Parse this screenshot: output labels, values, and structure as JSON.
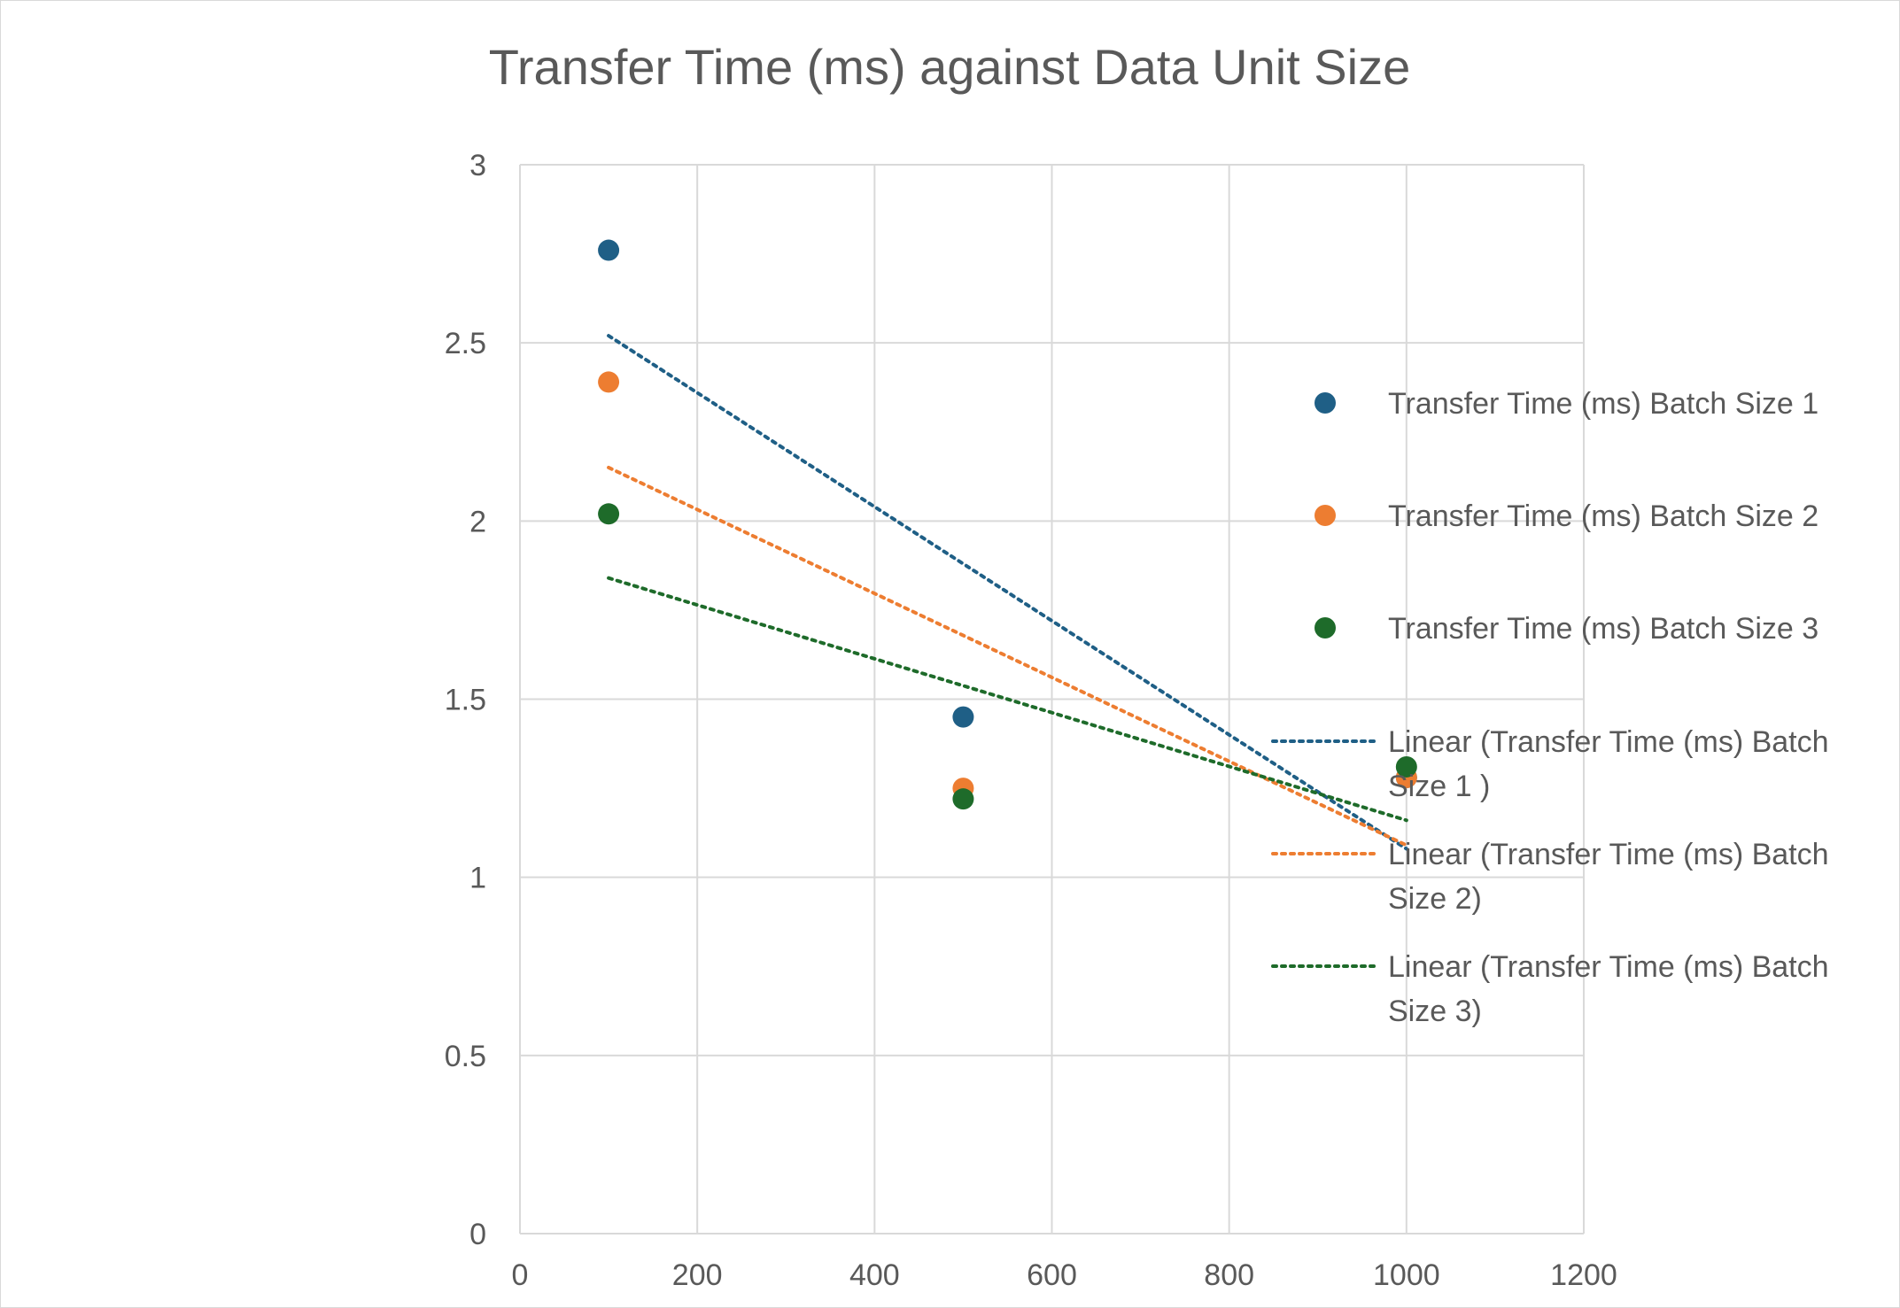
{
  "chart_data": {
    "type": "scatter",
    "title": "Transfer Time (ms) against Data Unit Size",
    "xlabel": "",
    "ylabel": "",
    "xlim": [
      0,
      1200
    ],
    "ylim": [
      0,
      3
    ],
    "x_ticks": [
      "0",
      "200",
      "400",
      "600",
      "800",
      "1000",
      "1200"
    ],
    "y_ticks": [
      "0",
      "0.5",
      "1",
      "1.5",
      "2",
      "2.5",
      "3"
    ],
    "grid": true,
    "legend_position": "right",
    "series": [
      {
        "name": "Transfer Time (ms) Batch Size 1",
        "color": "#1f5f86",
        "x": [
          100,
          500,
          1000
        ],
        "y": [
          2.76,
          1.45,
          1.28
        ]
      },
      {
        "name": "Transfer Time (ms) Batch Size 2",
        "color": "#ed7d31",
        "x": [
          100,
          500,
          1000
        ],
        "y": [
          2.39,
          1.25,
          1.28
        ]
      },
      {
        "name": "Transfer Time (ms) Batch Size 3",
        "color": "#1e6b2a",
        "x": [
          100,
          500,
          1000
        ],
        "y": [
          2.02,
          1.22,
          1.31
        ]
      }
    ],
    "trendlines": [
      {
        "name_lines": [
          "Linear (Transfer Time (ms) Batch",
          "Size 1 )"
        ],
        "color": "#1f5f86",
        "x": [
          100,
          1000
        ],
        "y": [
          2.52,
          1.08
        ]
      },
      {
        "name_lines": [
          "Linear (Transfer Time (ms) Batch",
          "Size 2)"
        ],
        "color": "#ed7d31",
        "x": [
          100,
          1000
        ],
        "y": [
          2.15,
          1.09
        ]
      },
      {
        "name_lines": [
          "Linear (Transfer Time (ms) Batch",
          "Size 3)"
        ],
        "color": "#1e6b2a",
        "x": [
          100,
          1000
        ],
        "y": [
          1.84,
          1.16
        ]
      }
    ]
  }
}
